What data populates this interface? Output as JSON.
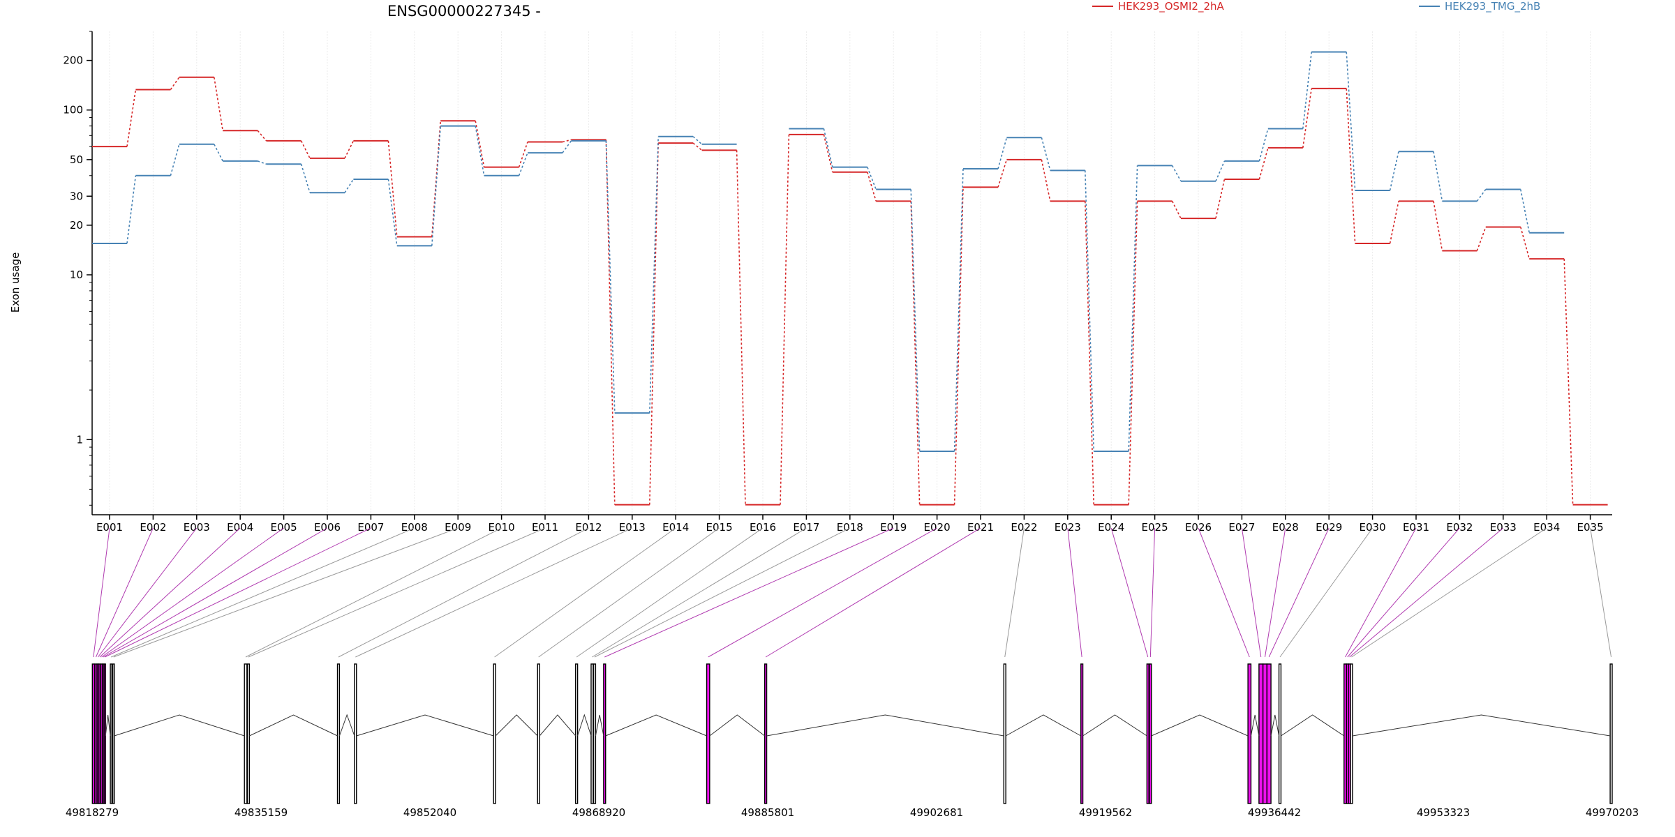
{
  "chart_data": {
    "type": "line",
    "title": "ENSG00000227345 -",
    "ylabel": "Exon usage",
    "yscale": "log",
    "ylim": [
      0.35,
      300
    ],
    "yticks": [
      1,
      10,
      20,
      30,
      50,
      100,
      200
    ],
    "ytick_labels": [
      "1",
      "10",
      "20",
      "30",
      "50",
      "100",
      "200"
    ],
    "categories": [
      "E001",
      "E002",
      "E003",
      "E004",
      "E005",
      "E006",
      "E007",
      "E008",
      "E009",
      "E010",
      "E011",
      "E012",
      "E013",
      "E014",
      "E015",
      "E016",
      "E017",
      "E018",
      "E019",
      "E020",
      "E021",
      "E022",
      "E023",
      "E024",
      "E025",
      "E026",
      "E027",
      "E028",
      "E029",
      "E030",
      "E031",
      "E032",
      "E033",
      "E034",
      "E035"
    ],
    "series": [
      {
        "name": "HEK293_OSMI2_2hA",
        "color": "#d62728",
        "values": [
          60,
          133,
          158,
          75,
          65,
          51,
          65,
          17,
          86,
          45,
          64,
          66,
          0.4,
          63,
          57,
          0.4,
          71,
          42,
          28,
          0.4,
          34,
          50,
          28,
          0.4,
          28,
          22,
          38,
          59,
          135,
          15.5,
          28,
          14,
          19.5,
          12.5,
          0.4
        ]
      },
      {
        "name": "HEK293_TMG_2hB",
        "color": "#4682b4",
        "values": [
          15.5,
          40,
          62,
          49,
          47,
          31.5,
          38,
          15,
          80,
          40,
          55,
          65,
          1.45,
          69,
          62,
          null,
          77,
          45,
          33,
          0.85,
          44,
          68,
          43,
          0.85,
          46,
          37,
          49,
          77,
          225,
          32.5,
          56,
          28,
          33,
          18,
          null
        ]
      }
    ],
    "genomic_ticks": [
      "49818279",
      "49835159",
      "49852040",
      "49868920",
      "49885801",
      "49902681",
      "49919562",
      "49936442",
      "49953323",
      "49970203"
    ],
    "genomic_range": [
      49818279,
      49970203
    ],
    "exon_highlight_color": "#ee11ee",
    "exons": [
      {
        "id": "E001",
        "start": 49818300,
        "end": 49818520,
        "highlight": true
      },
      {
        "id": "E002",
        "start": 49818560,
        "end": 49818760,
        "highlight": true
      },
      {
        "id": "E003",
        "start": 49818780,
        "end": 49818940,
        "highlight": true
      },
      {
        "id": "E004",
        "start": 49818960,
        "end": 49819120,
        "highlight": true
      },
      {
        "id": "E005",
        "start": 49819150,
        "end": 49819300,
        "highlight": true
      },
      {
        "id": "E006",
        "start": 49819320,
        "end": 49819460,
        "highlight": true
      },
      {
        "id": "E007",
        "start": 49819480,
        "end": 49819620,
        "highlight": true
      },
      {
        "id": "E008",
        "start": 49820100,
        "end": 49820250,
        "highlight": false
      },
      {
        "id": "E009",
        "start": 49820350,
        "end": 49820500,
        "highlight": false
      },
      {
        "id": "E010",
        "start": 49833500,
        "end": 49833750,
        "highlight": false
      },
      {
        "id": "E011",
        "start": 49833800,
        "end": 49834000,
        "highlight": false
      },
      {
        "id": "E012",
        "start": 49842800,
        "end": 49843000,
        "highlight": false
      },
      {
        "id": "E013",
        "start": 49844500,
        "end": 49844700,
        "highlight": false
      },
      {
        "id": "E014",
        "start": 49858400,
        "end": 49858600,
        "highlight": false
      },
      {
        "id": "E015",
        "start": 49862800,
        "end": 49863000,
        "highlight": false
      },
      {
        "id": "E016",
        "start": 49866600,
        "end": 49866800,
        "highlight": false
      },
      {
        "id": "E017",
        "start": 49868150,
        "end": 49868350,
        "highlight": false
      },
      {
        "id": "E018",
        "start": 49868400,
        "end": 49868600,
        "highlight": false
      },
      {
        "id": "E019",
        "start": 49869400,
        "end": 49869600,
        "highlight": true
      },
      {
        "id": "E020",
        "start": 49879700,
        "end": 49880000,
        "highlight": true
      },
      {
        "id": "E021",
        "start": 49885500,
        "end": 49885700,
        "highlight": true
      },
      {
        "id": "E022",
        "start": 49909400,
        "end": 49909600,
        "highlight": false
      },
      {
        "id": "E023",
        "start": 49917100,
        "end": 49917300,
        "highlight": true
      },
      {
        "id": "E024",
        "start": 49923700,
        "end": 49923900,
        "highlight": true
      },
      {
        "id": "E025",
        "start": 49923950,
        "end": 49924150,
        "highlight": true
      },
      {
        "id": "E026",
        "start": 49933800,
        "end": 49934100,
        "highlight": true
      },
      {
        "id": "E027",
        "start": 49934900,
        "end": 49935300,
        "highlight": true
      },
      {
        "id": "E028",
        "start": 49935300,
        "end": 49935700,
        "highlight": true
      },
      {
        "id": "E029",
        "start": 49935700,
        "end": 49936100,
        "highlight": true
      },
      {
        "id": "E030",
        "start": 49936900,
        "end": 49937100,
        "highlight": false
      },
      {
        "id": "E031",
        "start": 49943400,
        "end": 49943650,
        "highlight": true
      },
      {
        "id": "E032",
        "start": 49943650,
        "end": 49943850,
        "highlight": true
      },
      {
        "id": "E033",
        "start": 49943850,
        "end": 49944050,
        "highlight": true
      },
      {
        "id": "E034",
        "start": 49944050,
        "end": 49944250,
        "highlight": false
      },
      {
        "id": "E035",
        "start": 49970000,
        "end": 49970203,
        "highlight": false
      }
    ]
  }
}
